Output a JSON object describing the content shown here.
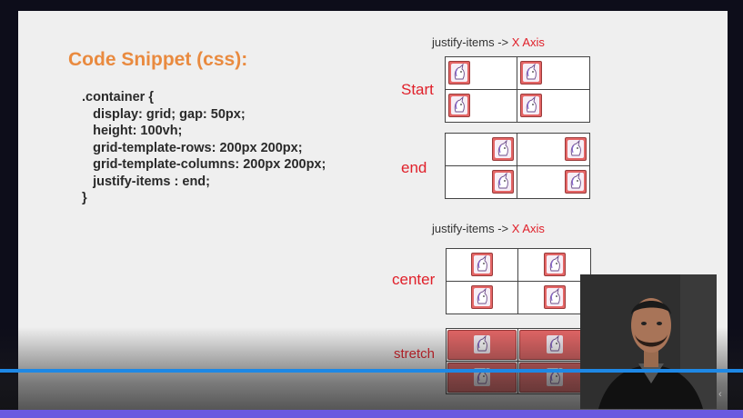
{
  "slide": {
    "snippet_title": "Code Snippet (css):",
    "code_lines": [
      ".container {",
      "   display: grid; gap: 50px;",
      "   height: 100vh;",
      "   grid-template-rows: 200px 200px;",
      "   grid-template-columns: 200px 200px;",
      "   justify-items : end;",
      "}"
    ]
  },
  "diagram_top": {
    "heading_prefix": "justify-items ->",
    "heading_axis": "X Axis",
    "grids": [
      {
        "label": "Start"
      },
      {
        "label": "end"
      }
    ]
  },
  "diagram_bottom": {
    "heading_prefix": "justify-items ->",
    "heading_axis": "X Axis",
    "grids": [
      {
        "label": "center"
      },
      {
        "label": "stretch"
      }
    ]
  },
  "icon": "unicorn-icon",
  "colors": {
    "accent_orange": "#e98a3f",
    "label_red": "#e0202a",
    "icon_fill": "#e46666",
    "progress_blue": "#1e88e5",
    "bottom_bar_purple": "#6a5ae0"
  },
  "video": {
    "progress_fraction": 1.0
  },
  "webcam": {
    "icon": "presenter-webcam"
  }
}
